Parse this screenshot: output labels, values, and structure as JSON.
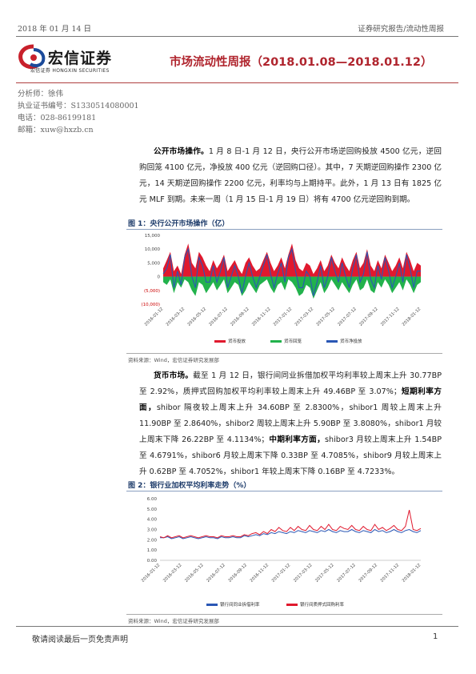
{
  "header": {
    "date": "2018 年 01 月 14 日",
    "category": "证券研究报告/流动性周报"
  },
  "logo": {
    "name": "宏信证券",
    "subtitle": "宏信证券 HONGXIN SECURITIES"
  },
  "report_title": "市场流动性周报（2018.01.08—2018.01.12）",
  "analyst": {
    "name_line": "分析师：徐伟",
    "cert_line": "执业证书编号：S1330514080001",
    "phone_line": "电话：028-86199181",
    "email_line": "邮箱：xuw@hxzb.cn"
  },
  "section1": {
    "heading": "公开市场操作。",
    "body": "1 月 8 日-1 月 12 日，央行公开市场逆回购投放 4500 亿元，逆回购回笼 4100 亿元，净投放 400 亿元（逆回购口径）。其中，7 天期逆回购操作 2300 亿元，14 天期逆回购操作 2200 亿元，利率均与上期持平。此外，1 月 13 日有 1825 亿元 MLF 到期。未来一周（1 月 15 日-1 月 19 日）将有 4700 亿元逆回购到期。"
  },
  "figure1": {
    "title": "图 1：央行公开市场操作（亿）",
    "source": "资料来源：Wind，宏信证券研究发展部"
  },
  "section2": {
    "heading": "货币市场。",
    "body1": "截至 1 月 12 日，银行间同业拆借加权平均利率较上周末上升 30.77BP 至 2.92%，质押式回购加权平均利率较上周末上升 49.46BP 至 3.07%；",
    "heading2": "短期利率方面，",
    "body2": "shibor 隔夜较上周末上升 34.60BP 至 2.8300%，shibor1 周较上周末上升 11.90BP 至 2.8640%，shibor2 周较上周末上升 5.90BP 至 3.8080%，shibor1 月较上周末下降 26.22BP 至 4.1134%；",
    "heading3": "中期利率方面，",
    "body3": "shibor3 月较上周末上升 1.54BP 至 4.6791%，shibor6 月较上周末下降 0.33BP 至 4.7085%，shibor9 月较上周末上升 0.62BP 至 4.7052%，shibor1 年较上周末下降 0.16BP 至 4.7233%。"
  },
  "figure2": {
    "title": "图 2：银行业加权平均利率走势（%）",
    "source": "资料来源：Wind，宏信证券研究发展部"
  },
  "footer": {
    "disclaimer": "敬请阅读最后一页免责声明",
    "page": "1"
  },
  "chart_data": [
    {
      "type": "area",
      "title": "",
      "ylim": [
        -10000,
        15000
      ],
      "yticks": [
        "15,000",
        "10,000",
        "5,000",
        "0",
        "(5,000)",
        "(10,000)"
      ],
      "ytick_values": [
        15000,
        10000,
        5000,
        0,
        -5000,
        -10000
      ],
      "x_tick_labels": [
        "2016-01-12",
        "2016-03-12",
        "2016-05-12",
        "2016-07-12",
        "2016-09-12",
        "2016-11-12",
        "2017-01-12",
        "2017-03-12",
        "2017-05-12",
        "2017-07-12",
        "2017-09-12",
        "2017-11-12",
        "2018-01-12"
      ],
      "legend_position": "bottom",
      "series": [
        {
          "name": "货币投放",
          "color": "#e0192e",
          "values": [
            3000,
            6000,
            9000,
            2000,
            4000,
            1000,
            8000,
            12000,
            5000,
            3000,
            9000,
            7000,
            4000,
            2000,
            6000,
            3000,
            5000,
            8000,
            2000,
            4000,
            6000,
            3000,
            1000,
            5000,
            7000,
            4000,
            2000,
            3000,
            6000,
            9000,
            5000,
            2000,
            4000,
            7000,
            3000,
            8000,
            12000,
            6000,
            3000,
            2000,
            5000,
            4000,
            1000,
            3000,
            6000,
            2000,
            4000,
            8000,
            5000,
            3000,
            7000,
            4000,
            2000,
            6000,
            9000,
            3000,
            5000,
            10000,
            4000,
            2000,
            6000,
            3000,
            8000,
            5000,
            2000,
            4000,
            7000,
            3000,
            9000,
            6000,
            2000,
            5000,
            4000
          ]
        },
        {
          "name": "货币回笼",
          "color": "#22b24c",
          "values": [
            -2000,
            -3000,
            -1000,
            -6000,
            -2000,
            -4000,
            -1000,
            -2000,
            -5000,
            -7000,
            -2000,
            -3000,
            -6000,
            -4000,
            -2000,
            -5000,
            -3000,
            -1000,
            -6000,
            -4000,
            -2000,
            -3000,
            -7000,
            -5000,
            -2000,
            -4000,
            -6000,
            -3000,
            -2000,
            -1000,
            -4000,
            -6000,
            -3000,
            -2000,
            -5000,
            -1000,
            -2000,
            -4000,
            -7000,
            -6000,
            -3000,
            -4000,
            -8000,
            -5000,
            -2000,
            -6000,
            -4000,
            -1000,
            -3000,
            -5000,
            -2000,
            -4000,
            -6000,
            -3000,
            -1000,
            -5000,
            -4000,
            -1000,
            -5000,
            -6000,
            -2000,
            -4000,
            -1000,
            -3000,
            -6000,
            -4000,
            -2000,
            -5000,
            -1000,
            -3000,
            -6000,
            -3000,
            -2000
          ]
        },
        {
          "name": "货币净投放",
          "color": "#2a57b5",
          "values": [
            1000,
            3000,
            8000,
            -4000,
            2000,
            -3000,
            7000,
            10000,
            0,
            -4000,
            7000,
            4000,
            -2000,
            -2000,
            4000,
            -2000,
            2000,
            7000,
            -4000,
            0,
            4000,
            0,
            -6000,
            0,
            5000,
            0,
            -4000,
            0,
            4000,
            8000,
            1000,
            -4000,
            1000,
            5000,
            -2000,
            7000,
            10000,
            2000,
            -4000,
            -4000,
            2000,
            0,
            -7000,
            -2000,
            4000,
            -4000,
            0,
            7000,
            2000,
            -2000,
            5000,
            0,
            -4000,
            3000,
            8000,
            -2000,
            1000,
            9000,
            -1000,
            -4000,
            4000,
            -1000,
            7000,
            2000,
            -4000,
            0,
            5000,
            -2000,
            8000,
            3000,
            -4000,
            2000,
            2000
          ]
        }
      ]
    },
    {
      "type": "line",
      "title": "",
      "ylim": [
        0,
        6
      ],
      "yticks": [
        "6.00",
        "5.00",
        "4.00",
        "3.00",
        "2.00",
        "1.00",
        "0.00"
      ],
      "ytick_values": [
        6,
        5,
        4,
        3,
        2,
        1,
        0
      ],
      "x_tick_labels": [
        "2016-01-12",
        "2016-03-12",
        "2016-05-12",
        "2016-07-12",
        "2016-09-12",
        "2016-11-12",
        "2017-01-12",
        "2017-03-12",
        "2017-05-12",
        "2017-07-12",
        "2017-09-12",
        "2017-11-12",
        "2018-01-12"
      ],
      "legend_position": "bottom",
      "series": [
        {
          "name": "银行间同业拆借利率",
          "color": "#2a57b5",
          "values": [
            2.2,
            2.2,
            2.3,
            2.1,
            2.2,
            2.3,
            2.1,
            2.2,
            2.3,
            2.2,
            2.1,
            2.2,
            2.3,
            2.2,
            2.2,
            2.1,
            2.3,
            2.2,
            2.2,
            2.3,
            2.2,
            2.2,
            2.4,
            2.3,
            2.4,
            2.5,
            2.4,
            2.6,
            2.5,
            2.7,
            2.6,
            2.8,
            2.7,
            2.6,
            2.8,
            2.7,
            2.9,
            2.8,
            2.7,
            2.9,
            2.8,
            2.7,
            2.9,
            2.8,
            3.0,
            2.8,
            2.7,
            2.9,
            2.8,
            2.8,
            3.0,
            2.8,
            2.7,
            2.9,
            2.8,
            2.7,
            3.0,
            2.8,
            2.9,
            2.7,
            2.8,
            3.0,
            2.8,
            2.7,
            2.9,
            3.0,
            2.8,
            2.7,
            2.9
          ]
        },
        {
          "name": "银行间质押式回购利率",
          "color": "#e0192e",
          "values": [
            2.3,
            2.2,
            2.4,
            2.2,
            2.3,
            2.4,
            2.2,
            2.3,
            2.4,
            2.3,
            2.2,
            2.3,
            2.4,
            2.3,
            2.3,
            2.2,
            2.4,
            2.3,
            2.3,
            2.4,
            2.3,
            2.3,
            2.5,
            2.4,
            2.6,
            2.7,
            2.5,
            2.8,
            2.6,
            3.0,
            2.8,
            3.2,
            2.9,
            2.8,
            3.2,
            2.9,
            3.3,
            3.0,
            2.9,
            3.4,
            3.0,
            2.9,
            3.3,
            3.0,
            3.5,
            3.0,
            2.9,
            3.3,
            3.1,
            3.0,
            3.4,
            3.0,
            2.9,
            3.3,
            3.0,
            2.9,
            3.5,
            3.0,
            3.2,
            2.9,
            3.1,
            3.4,
            3.0,
            2.9,
            3.3,
            4.9,
            3.0,
            2.9,
            3.1
          ]
        }
      ]
    }
  ]
}
